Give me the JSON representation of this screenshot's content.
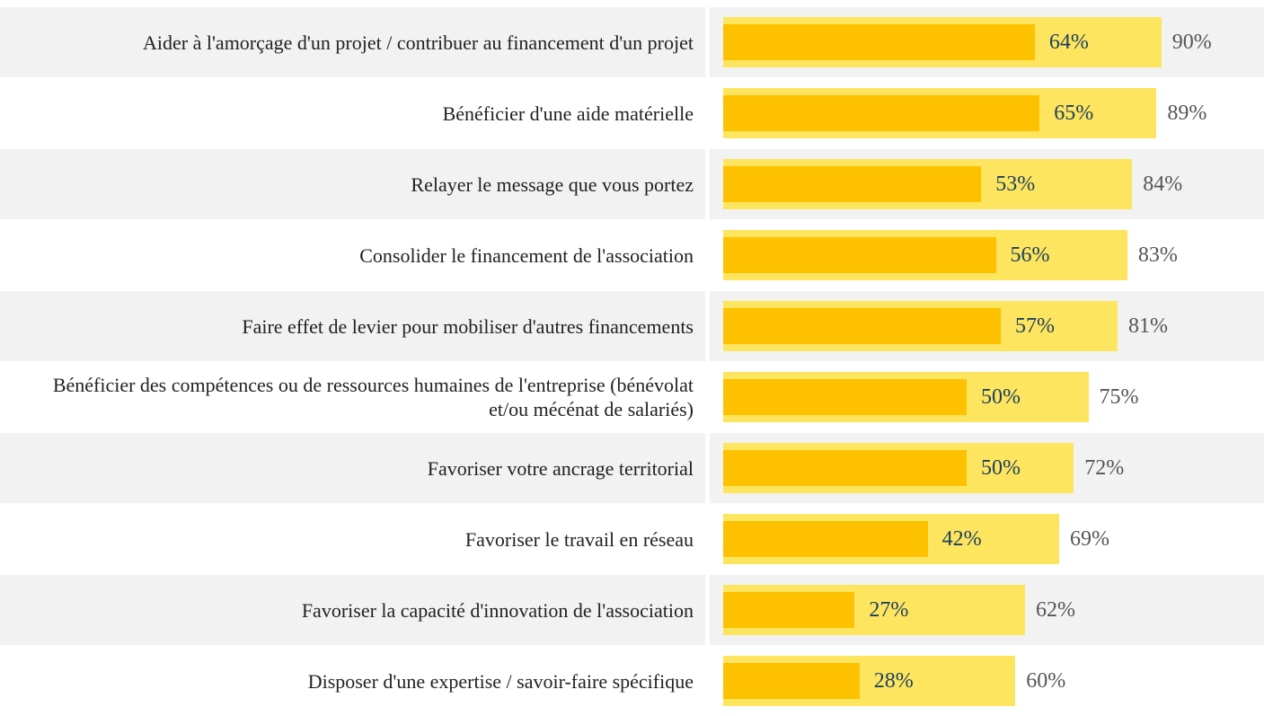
{
  "chart_data": {
    "type": "bar",
    "orientation": "horizontal",
    "categories": [
      "Aider à l'amorçage d'un projet / contribuer au financement d'un projet",
      "Bénéficier d'une aide matérielle",
      "Relayer le message que vous portez",
      "Consolider le financement de l'association",
      "Faire effet de levier pour mobiliser d'autres financements",
      "Bénéficier des compétences ou de ressources humaines de l'entreprise (bénévolat et/ou mécénat de salariés)",
      "Favoriser votre ancrage territorial",
      "Favoriser le travail en réseau",
      "Favoriser la capacité d'innovation de l'association",
      "Disposer d'une expertise / savoir-faire spécifique"
    ],
    "series": [
      {
        "color": "#fde55f",
        "values": [
          90,
          89,
          84,
          83,
          81,
          75,
          72,
          69,
          62,
          60
        ],
        "value_labels": [
          "90%",
          "89%",
          "84%",
          "83%",
          "81%",
          "75%",
          "72%",
          "69%",
          "62%",
          "60%"
        ]
      },
      {
        "color": "#fdc100",
        "values": [
          64,
          65,
          53,
          56,
          57,
          50,
          50,
          42,
          27,
          28
        ],
        "value_labels": [
          "64%",
          "65%",
          "53%",
          "56%",
          "57%",
          "50%",
          "50%",
          "42%",
          "27%",
          "28%"
        ]
      }
    ],
    "xlim": [
      0,
      100
    ]
  }
}
